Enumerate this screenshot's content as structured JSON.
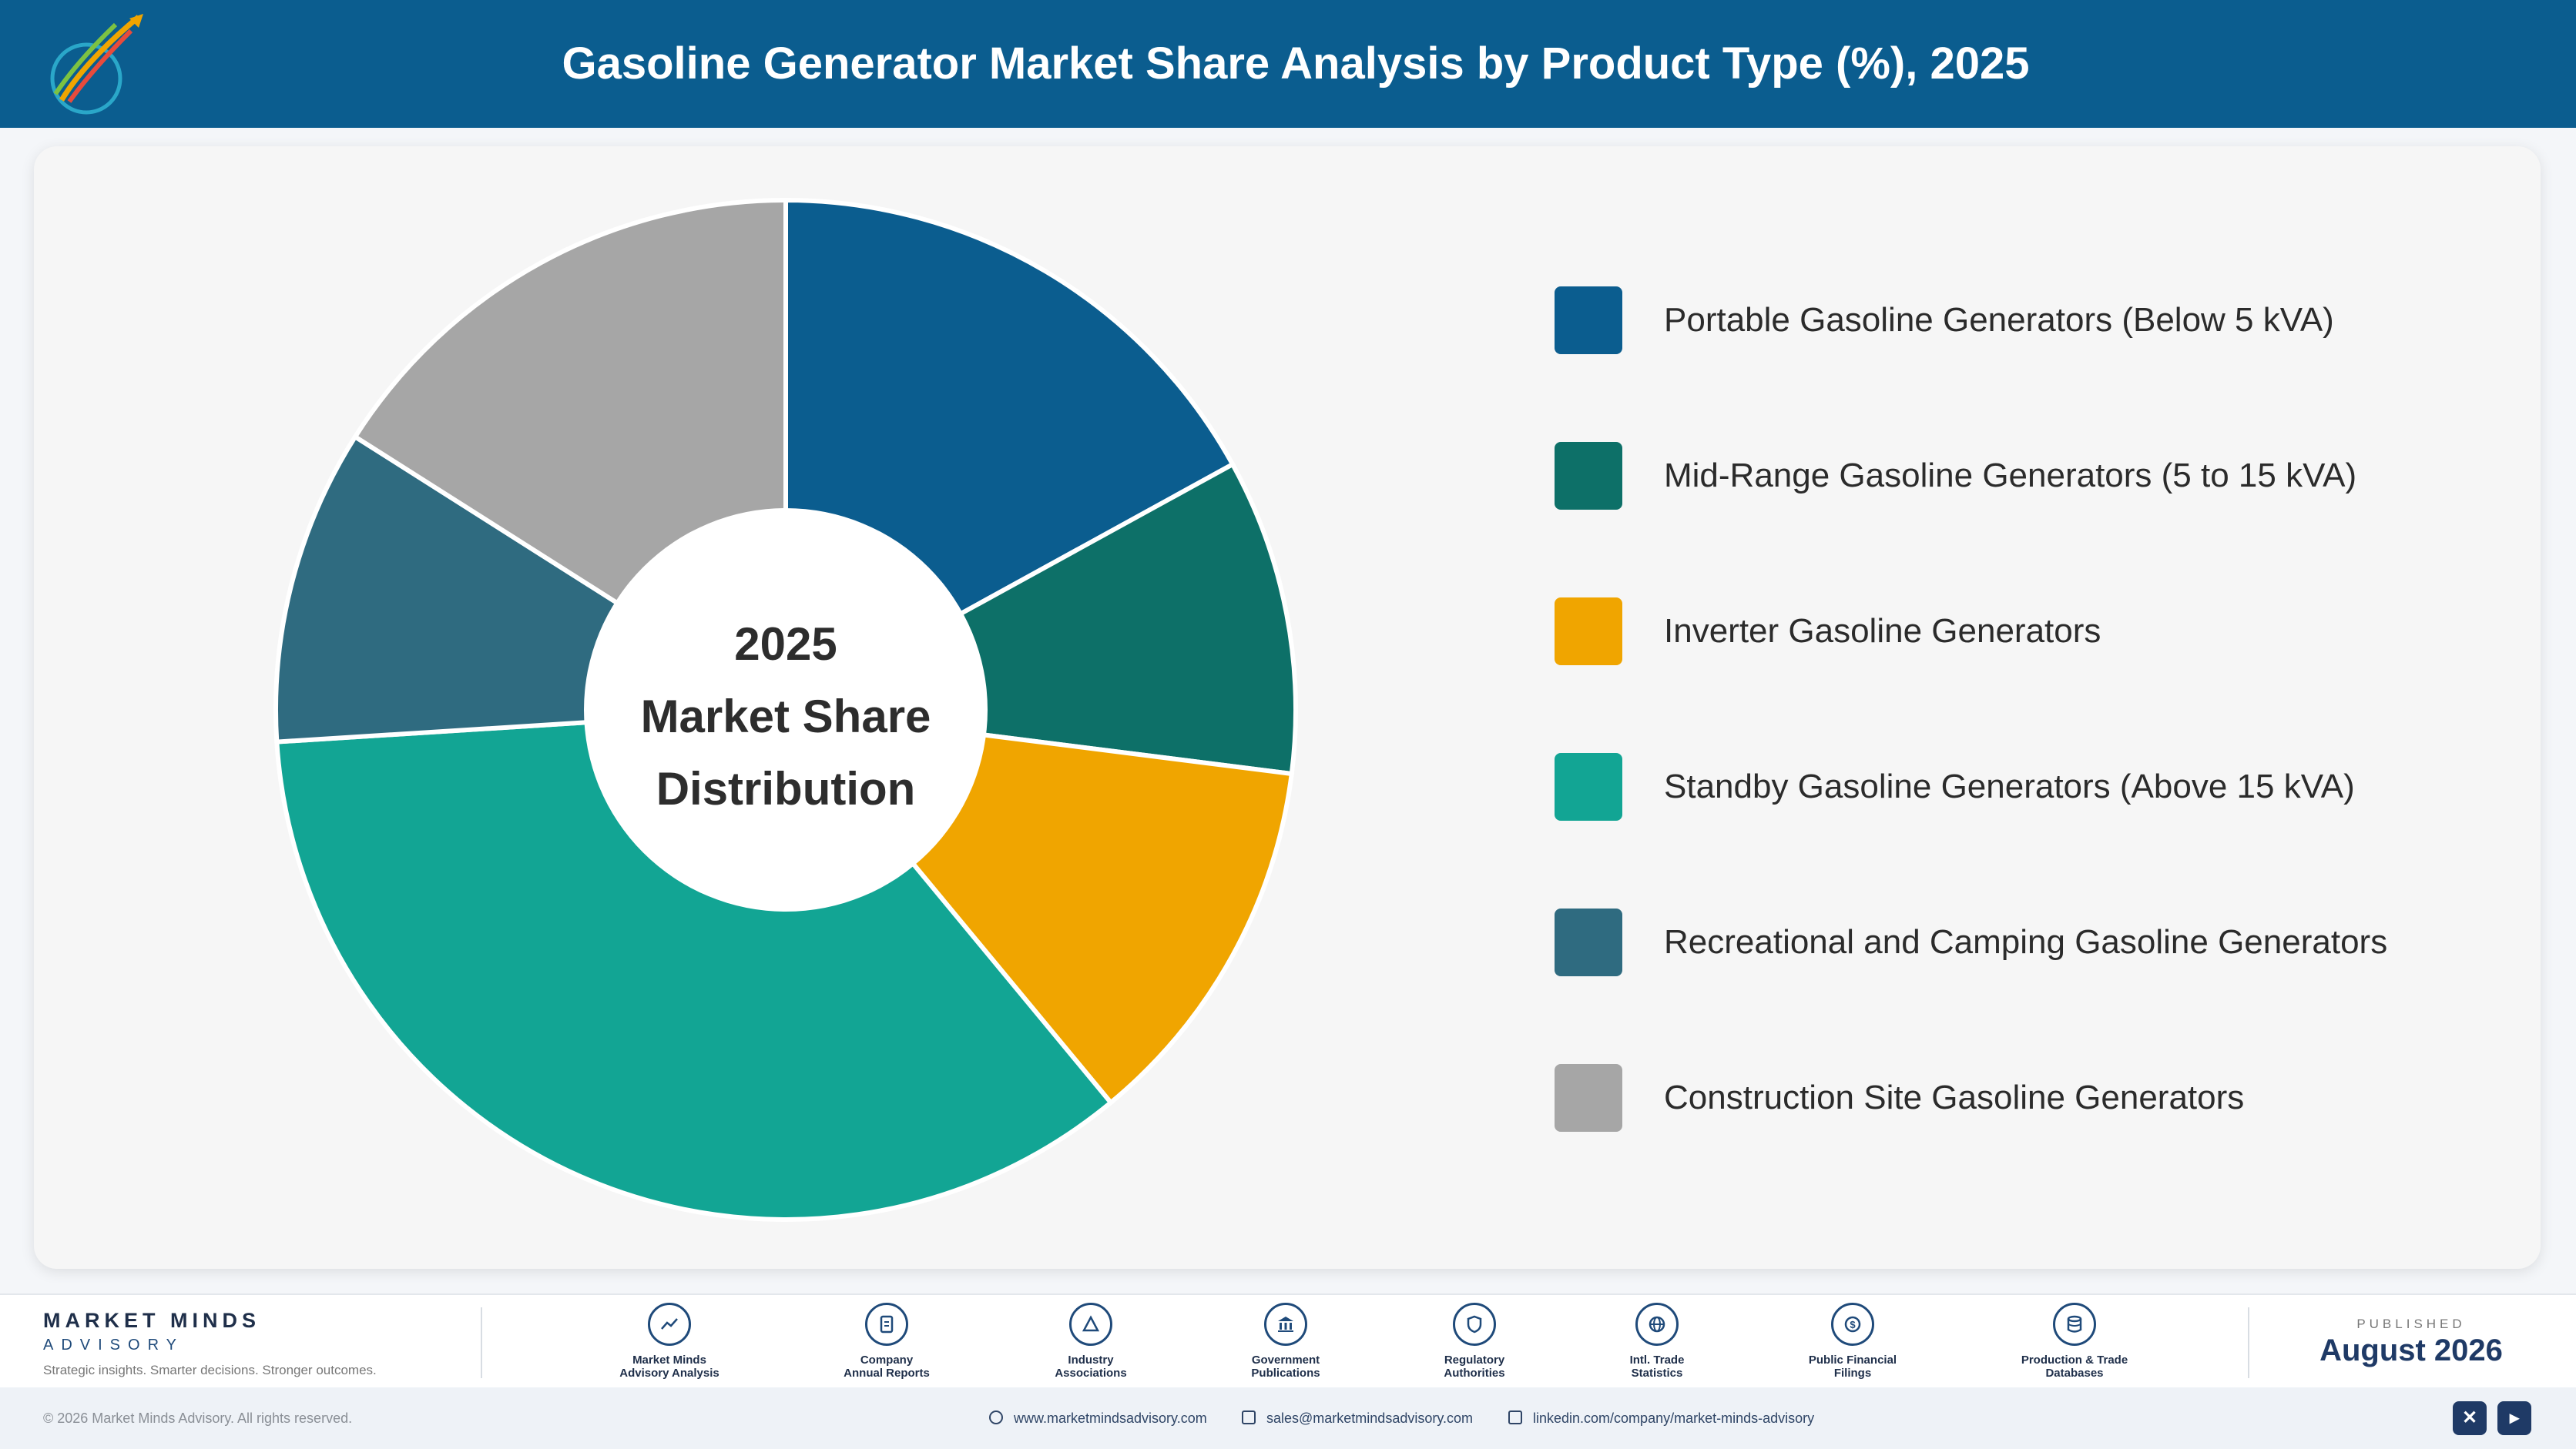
{
  "header": {
    "title": "Gasoline Generator Market Share Analysis by Product Type (%), 2025"
  },
  "chart_center": {
    "line1": "2025",
    "line2": "Market Share",
    "line3": "Distribution"
  },
  "chart_data": {
    "type": "pie",
    "title": "Gasoline Generator Market Share Analysis by Product Type (%), 2025",
    "categories": [
      "Portable Gasoline Generators (Below 5 kVA)",
      "Mid-Range Gasoline Generators (5 to 15 kVA)",
      "Inverter Gasoline Generators",
      "Standby Gasoline Generators (Above 15 kVA)",
      "Recreational and Camping Gasoline Generators",
      "Construction Site Gasoline Generators"
    ],
    "values": [
      17,
      10,
      12,
      35,
      10,
      16
    ],
    "colors": [
      "#0b5d8f",
      "#0d7068",
      "#f0a500",
      "#12a594",
      "#2f6b80",
      "#a6a6a6"
    ],
    "legend_position": "right",
    "donut": true
  },
  "footer": {
    "brand_name": "MARKET MINDS",
    "brand_sub": "ADVISORY",
    "brand_tagline": "Strategic insights. Smarter decisions. Stronger outcomes.",
    "sources": [
      {
        "label1": "Market Minds",
        "label2": "Advisory Analysis",
        "icon": "chart-line-icon"
      },
      {
        "label1": "Company",
        "label2": "Annual Reports",
        "icon": "document-icon"
      },
      {
        "label1": "Industry",
        "label2": "Associations",
        "icon": "network-icon"
      },
      {
        "label1": "Government",
        "label2": "Publications",
        "icon": "building-icon"
      },
      {
        "label1": "Regulatory",
        "label2": "Authorities",
        "icon": "shield-icon"
      },
      {
        "label1": "Intl. Trade",
        "label2": "Statistics",
        "icon": "globe-icon"
      },
      {
        "label1": "Public Financial",
        "label2": "Filings",
        "icon": "dollar-icon"
      },
      {
        "label1": "Production & Trade",
        "label2": "Databases",
        "icon": "database-icon"
      }
    ],
    "published_label": "PUBLISHED",
    "published_date": "August 2026"
  },
  "bottom_bar": {
    "copyright": "© 2026 Market Minds Advisory. All rights reserved.",
    "website": "www.marketmindsadvisory.com",
    "email": "sales@marketmindsadvisory.com",
    "linkedin": "linkedin.com/company/market-minds-advisory"
  }
}
